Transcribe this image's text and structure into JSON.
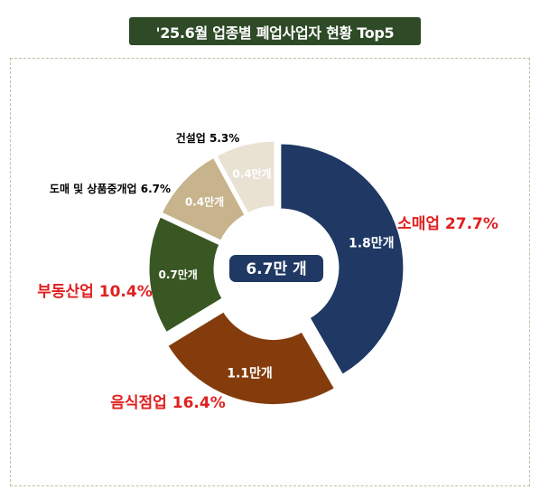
{
  "title": "'25.6월 업종별 폐업사업자 현황 Top5",
  "center_label": "6.7만 개",
  "chart_data": {
    "type": "pie",
    "title": "'25.6월 업종별 폐업사업자 현황 Top5",
    "total_label": "6.7만 개",
    "slices": [
      {
        "name": "소매업",
        "percent": 27.7,
        "value": 1.8,
        "value_label": "1.8만개",
        "color": "#1f3864",
        "label_color": "#e02020",
        "label_text": "소매업 27.7%"
      },
      {
        "name": "음식점업",
        "percent": 16.4,
        "value": 1.1,
        "value_label": "1.1만개",
        "color": "#843c0c",
        "label_color": "#e02020",
        "label_text": "음식점업 16.4%"
      },
      {
        "name": "부동산업",
        "percent": 10.4,
        "value": 0.7,
        "value_label": "0.7만개",
        "color": "#385723",
        "label_color": "#e02020",
        "label_text": "부동산업 10.4%"
      },
      {
        "name": "도매 및 상품중개업",
        "percent": 6.7,
        "value": 0.4,
        "value_label": "0.4만개",
        "color": "#c7b48c",
        "label_color": "#000000",
        "label_text": "도매 및 상품중개업 6.7%"
      },
      {
        "name": "건설업",
        "percent": 5.3,
        "value": 0.4,
        "value_label": "0.4만개",
        "color": "#e9e2d3",
        "label_color": "#000000",
        "label_text": "건설업 5.3%"
      }
    ]
  }
}
